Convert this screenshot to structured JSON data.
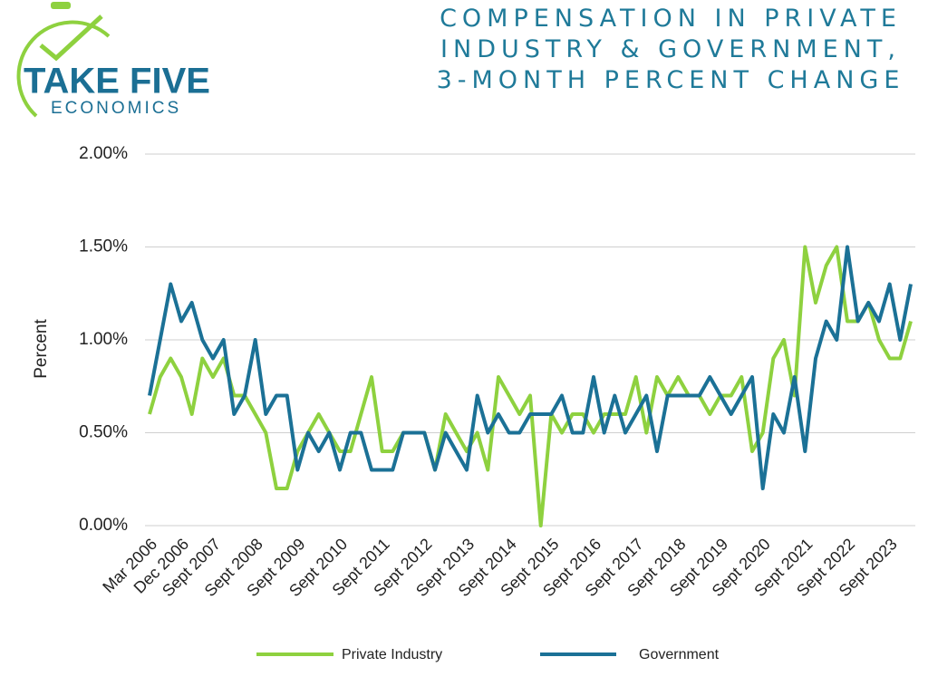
{
  "logo": {
    "name": "TAKE FIVE",
    "subtitle": "ECONOMICS"
  },
  "chart_data": {
    "type": "line",
    "title": "COMPENSATION IN PRIVATE INDUSTRY & GOVERNMENT, 3-MONTH PERCENT CHANGE",
    "y_label": "Percent",
    "categories": [
      "Mar 2006",
      null,
      null,
      "Dec 2006",
      null,
      null,
      "Sept 2007",
      null,
      null,
      null,
      "Sept 2008",
      null,
      null,
      null,
      "Sept 2009",
      null,
      null,
      null,
      "Sept 2010",
      null,
      null,
      null,
      "Sept 2011",
      null,
      null,
      null,
      "Sept 2012",
      null,
      null,
      null,
      "Sept 2013",
      null,
      null,
      null,
      "Sept 2014",
      null,
      null,
      null,
      "Sept 2015",
      null,
      null,
      null,
      "Sept 2016",
      null,
      null,
      null,
      "Sept 2017",
      null,
      null,
      null,
      "Sept 2018",
      null,
      null,
      null,
      "Sept 2019",
      null,
      null,
      null,
      "Sept 2020",
      null,
      null,
      null,
      "Sept 2021",
      null,
      null,
      null,
      "Sept 2022",
      null,
      null,
      null,
      "Sept 2023",
      null,
      null
    ],
    "series": [
      {
        "name": "Private Industry",
        "color": "#8ed13f",
        "values": [
          0.6,
          0.8,
          0.9,
          0.8,
          0.6,
          0.9,
          0.8,
          0.9,
          0.7,
          0.7,
          0.6,
          0.5,
          0.2,
          0.2,
          0.4,
          0.5,
          0.6,
          0.5,
          0.4,
          0.4,
          0.6,
          0.8,
          0.4,
          0.4,
          0.5,
          0.5,
          0.5,
          0.3,
          0.6,
          0.5,
          0.4,
          0.5,
          0.3,
          0.8,
          0.7,
          0.6,
          0.7,
          0.0,
          0.6,
          0.5,
          0.6,
          0.6,
          0.5,
          0.6,
          0.6,
          0.6,
          0.8,
          0.5,
          0.8,
          0.7,
          0.8,
          0.7,
          0.7,
          0.6,
          0.7,
          0.7,
          0.8,
          0.4,
          0.5,
          0.9,
          1.0,
          0.7,
          1.5,
          1.2,
          1.4,
          1.5,
          1.1,
          1.1,
          1.2,
          1.0,
          0.9,
          0.9,
          1.1
        ]
      },
      {
        "name": "Government",
        "color": "#1b7196",
        "values": [
          0.7,
          1.0,
          1.3,
          1.1,
          1.2,
          1.0,
          0.9,
          1.0,
          0.6,
          0.7,
          1.0,
          0.6,
          0.7,
          0.7,
          0.3,
          0.5,
          0.4,
          0.5,
          0.3,
          0.5,
          0.5,
          0.3,
          0.3,
          0.3,
          0.5,
          0.5,
          0.5,
          0.3,
          0.5,
          0.4,
          0.3,
          0.7,
          0.5,
          0.6,
          0.5,
          0.5,
          0.6,
          0.6,
          0.6,
          0.7,
          0.5,
          0.5,
          0.8,
          0.5,
          0.7,
          0.5,
          0.6,
          0.7,
          0.4,
          0.7,
          0.7,
          0.7,
          0.7,
          0.8,
          0.7,
          0.6,
          0.7,
          0.8,
          0.2,
          0.6,
          0.5,
          0.8,
          0.4,
          0.9,
          1.1,
          1.0,
          1.5,
          1.1,
          1.2,
          1.1,
          1.3,
          1.0,
          1.3
        ]
      }
    ],
    "ylim": [
      0,
      2
    ],
    "yticks": [
      {
        "value": 0,
        "label": "0.00%"
      },
      {
        "value": 0.5,
        "label": "0.50%"
      },
      {
        "value": 1,
        "label": "1.00%"
      },
      {
        "value": 1.5,
        "label": "1.50%"
      },
      {
        "value": 2,
        "label": "2.00%"
      }
    ],
    "grid": true,
    "legend": "bottom"
  }
}
